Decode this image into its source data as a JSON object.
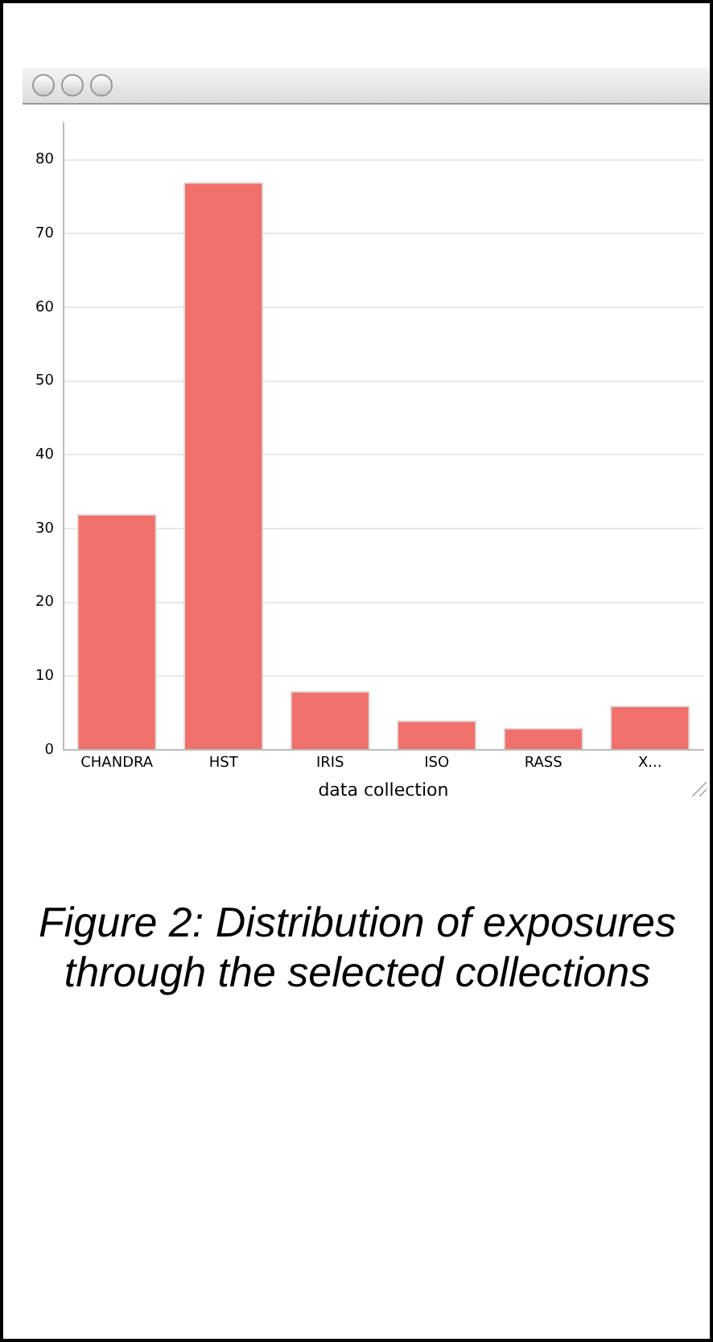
{
  "chart_data": {
    "type": "bar",
    "categories": [
      "CHANDRA",
      "HST",
      "IRIS",
      "ISO",
      "RASS",
      "X..."
    ],
    "values": [
      32,
      77,
      8,
      4,
      3,
      6
    ],
    "color": "#f0716b",
    "xlabel": "data collection",
    "ylim": [
      0,
      85
    ],
    "yticks": [
      0,
      10,
      20,
      30,
      40,
      50,
      60,
      70,
      80
    ],
    "grid": "y",
    "legend": false,
    "annotations": [
      "Figure 2: Distribution of exposures through the selected collections"
    ]
  }
}
